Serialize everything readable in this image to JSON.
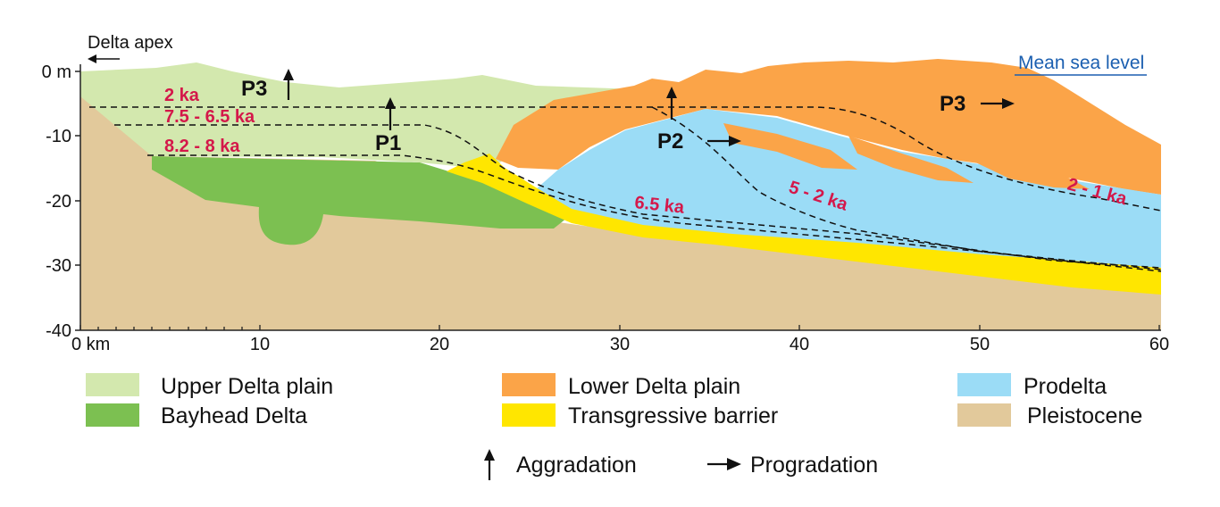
{
  "header": {
    "delta_apex": "Delta apex",
    "mean_sea_level": "Mean sea level"
  },
  "axes": {
    "y_ticks": [
      "0 m",
      "-10",
      "-20",
      "-30",
      "-40"
    ],
    "x_ticks": [
      "0 km",
      "10",
      "20",
      "30",
      "40",
      "50",
      "60"
    ]
  },
  "age_labels": [
    "2 ka",
    "7.5 - 6.5 ka",
    "8.2 - 8 ka",
    "6.5 ka",
    "5 - 2 ka",
    "2 - 1 ka"
  ],
  "phase_labels": [
    "P3",
    "P1",
    "P2",
    "P3"
  ],
  "legend": {
    "units": [
      {
        "label": "Upper Delta plain",
        "color": "#d3e8ae"
      },
      {
        "label": "Bayhead Delta",
        "color": "#7cc051"
      },
      {
        "label": "Lower Delta plain",
        "color": "#fba448"
      },
      {
        "label": "Transgressive barrier",
        "color": "#ffe600"
      },
      {
        "label": "Prodelta",
        "color": "#9bdcf6"
      },
      {
        "label": "Pleistocene",
        "color": "#e2c99b"
      }
    ],
    "symbols": [
      {
        "label": "Aggradation",
        "icon": "arrow-up-icon"
      },
      {
        "label": "Progradation",
        "icon": "arrow-right-icon"
      }
    ]
  }
}
